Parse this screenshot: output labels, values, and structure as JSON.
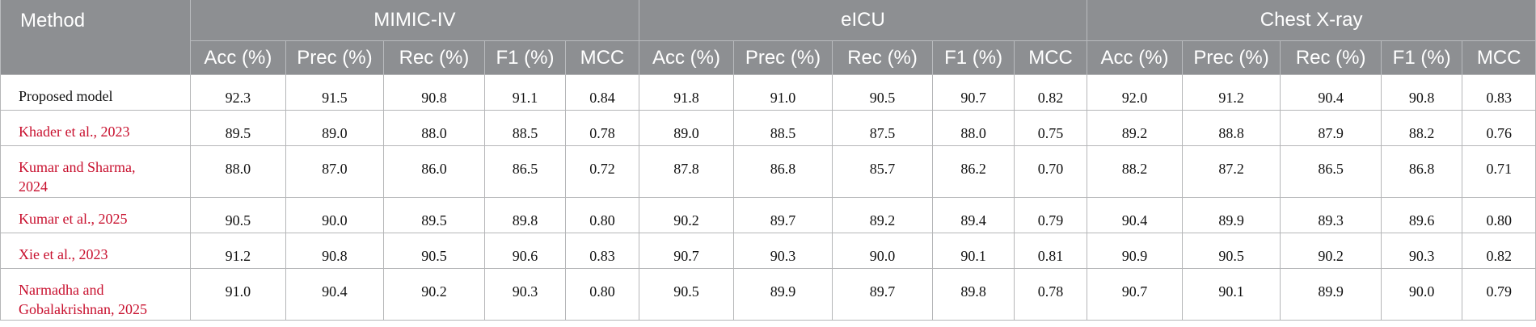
{
  "header": {
    "method_label": "Method",
    "groups": [
      "MIMIC-IV",
      "eICU",
      "Chest X-ray"
    ],
    "metrics": [
      "Acc (%)",
      "Prec (%)",
      "Rec (%)",
      "F1 (%)",
      "MCC"
    ]
  },
  "rows": [
    {
      "method_lines": [
        "Proposed model"
      ],
      "values": [
        "92.3",
        "91.5",
        "90.8",
        "91.1",
        "0.84",
        "91.8",
        "91.0",
        "90.5",
        "90.7",
        "0.82",
        "92.0",
        "91.2",
        "90.4",
        "90.8",
        "0.83"
      ]
    },
    {
      "method_lines": [
        "Khader et al., 2023"
      ],
      "values": [
        "89.5",
        "89.0",
        "88.0",
        "88.5",
        "0.78",
        "89.0",
        "88.5",
        "87.5",
        "88.0",
        "0.75",
        "89.2",
        "88.8",
        "87.9",
        "88.2",
        "0.76"
      ]
    },
    {
      "method_lines": [
        "Kumar and Sharma,",
        "2024"
      ],
      "values": [
        "88.0",
        "87.0",
        "86.0",
        "86.5",
        "0.72",
        "87.8",
        "86.8",
        "85.7",
        "86.2",
        "0.70",
        "88.2",
        "87.2",
        "86.5",
        "86.8",
        "0.71"
      ]
    },
    {
      "method_lines": [
        "Kumar et al., 2025"
      ],
      "values": [
        "90.5",
        "90.0",
        "89.5",
        "89.8",
        "0.80",
        "90.2",
        "89.7",
        "89.2",
        "89.4",
        "0.79",
        "90.4",
        "89.9",
        "89.3",
        "89.6",
        "0.80"
      ]
    },
    {
      "method_lines": [
        "Xie et al., 2023"
      ],
      "values": [
        "91.2",
        "90.8",
        "90.5",
        "90.6",
        "0.83",
        "90.7",
        "90.3",
        "90.0",
        "90.1",
        "0.81",
        "90.9",
        "90.5",
        "90.2",
        "90.3",
        "0.82"
      ]
    },
    {
      "method_lines": [
        "Narmadha and",
        "Gobalakrishnan, 2025"
      ],
      "values": [
        "91.0",
        "90.4",
        "90.2",
        "90.3",
        "0.80",
        "90.5",
        "89.9",
        "89.7",
        "89.8",
        "0.78",
        "90.7",
        "90.1",
        "89.9",
        "90.0",
        "0.79"
      ]
    }
  ],
  "colors": {
    "header_bg": "#8d8f92",
    "header_text": "#ffffff",
    "citation_red": "#c8102e",
    "grid_line": "#b5b6b8"
  }
}
